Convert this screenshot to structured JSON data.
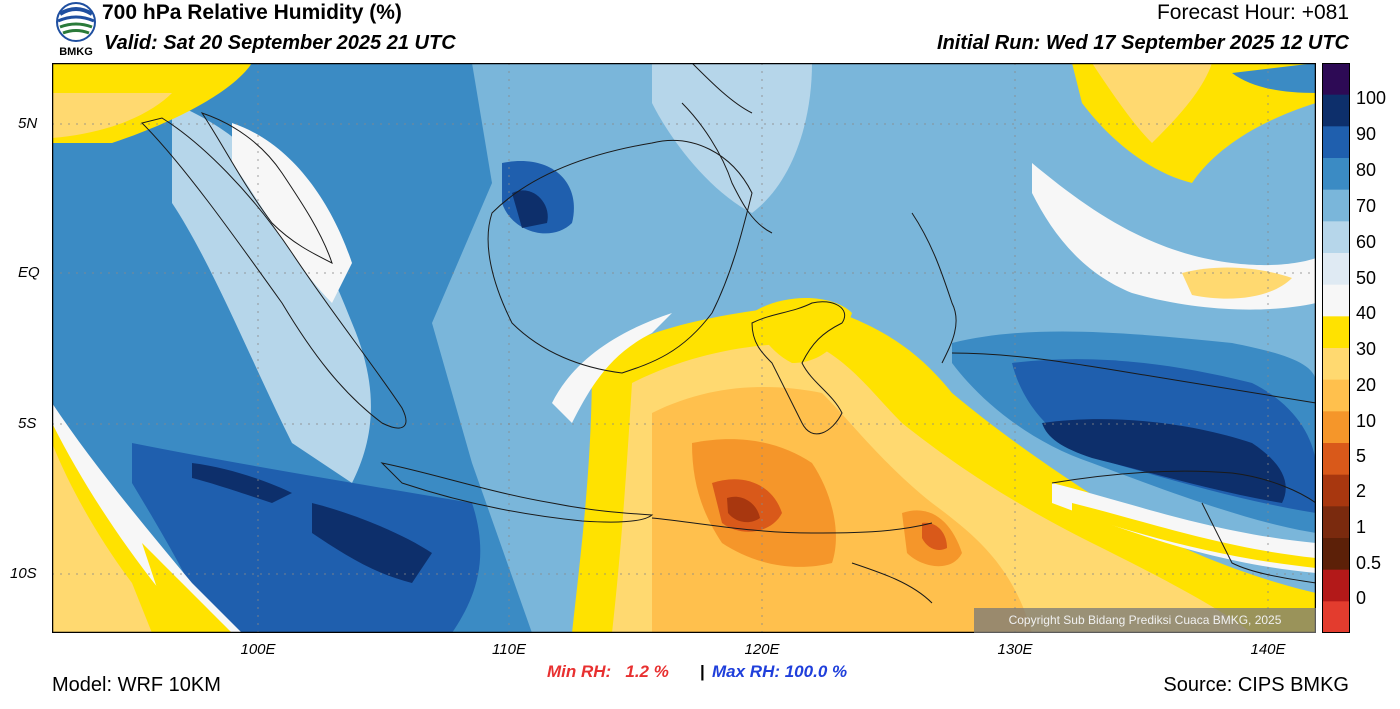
{
  "header": {
    "title": "700 hPa Relative Humidity (%)",
    "valid": "Valid: Sat 20 September 2025 21 UTC",
    "forecast_hour": "Forecast Hour: +081",
    "initial_run": "Initial Run: Wed 17 September 2025 12 UTC",
    "logo_text": "BMKG"
  },
  "map": {
    "lat_labels": [
      "5N",
      "EQ",
      "5S",
      "10S"
    ],
    "lon_labels": [
      "100E",
      "110E",
      "120E",
      "130E",
      "140E"
    ],
    "copyright": "Copyright Sub Bidang Prediksi Cuaca BMKG, 2025"
  },
  "colorbar": {
    "labels": [
      "100",
      "90",
      "80",
      "70",
      "60",
      "50",
      "40",
      "30",
      "20",
      "10",
      "5",
      "2",
      "1",
      "0.5",
      "0"
    ],
    "colors": [
      "#2d0a55",
      "#0d2f6b",
      "#1f5fae",
      "#3b8bc4",
      "#7ab6da",
      "#b6d6ea",
      "#dfeaf3",
      "#f7f7f7",
      "#ffe200",
      "#ffd970",
      "#ffc04d",
      "#f5962a",
      "#d9591a",
      "#a8370f",
      "#7a2a0e",
      "#5c2008",
      "#b31919",
      "#e33c2e"
    ]
  },
  "footer": {
    "model": "Model: WRF 10KM",
    "source": "Source: CIPS BMKG",
    "min_rh": "Min RH:   1.2 %",
    "separator": "|",
    "max_rh": "Max RH: 100.0 %"
  }
}
